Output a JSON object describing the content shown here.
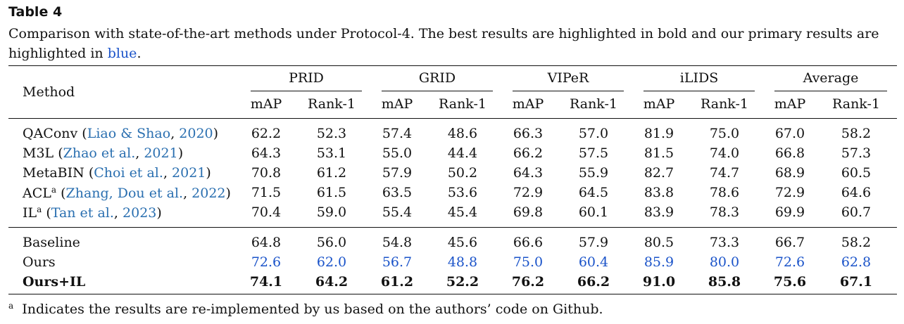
{
  "caption": {
    "title": "Table 4",
    "text_part1": "Comparison with state-of-the-art methods under Protocol-4. The best results are highlighted in bold and our primary results are highlighted in ",
    "blue_word": "blue",
    "text_part2": "."
  },
  "table": {
    "method_header": "Method",
    "groups": [
      "PRID",
      "GRID",
      "VIPeR",
      "iLIDS",
      "Average"
    ],
    "subheaders": [
      "mAP",
      "Rank-1"
    ],
    "rows_sota": [
      {
        "name": "QAConv",
        "cite_open": "(",
        "cite_authors": "Liao & Shao",
        "cite_sep": ", ",
        "cite_year": "2020",
        "cite_close": ")",
        "sup": "",
        "values": [
          "62.2",
          "52.3",
          "57.4",
          "48.6",
          "66.3",
          "57.0",
          "81.9",
          "75.0",
          "67.0",
          "58.2"
        ]
      },
      {
        "name": "M3L",
        "cite_open": "(",
        "cite_authors": "Zhao et al.",
        "cite_sep": ", ",
        "cite_year": "2021",
        "cite_close": ")",
        "sup": "",
        "values": [
          "64.3",
          "53.1",
          "55.0",
          "44.4",
          "66.2",
          "57.5",
          "81.5",
          "74.0",
          "66.8",
          "57.3"
        ]
      },
      {
        "name": "MetaBIN",
        "cite_open": "(",
        "cite_authors": "Choi et al.",
        "cite_sep": ", ",
        "cite_year": "2021",
        "cite_close": ")",
        "sup": "",
        "values": [
          "70.8",
          "61.2",
          "57.9",
          "50.2",
          "64.3",
          "55.9",
          "82.7",
          "74.7",
          "68.9",
          "60.5"
        ]
      },
      {
        "name": "ACL",
        "cite_open": "(",
        "cite_authors": "Zhang, Dou et al.",
        "cite_sep": ", ",
        "cite_year": "2022",
        "cite_close": ")",
        "sup": "a",
        "values": [
          "71.5",
          "61.5",
          "63.5",
          "53.6",
          "72.9",
          "64.5",
          "83.8",
          "78.6",
          "72.9",
          "64.6"
        ]
      },
      {
        "name": "IL",
        "cite_open": "(",
        "cite_authors": "Tan et al.",
        "cite_sep": ", ",
        "cite_year": "2023",
        "cite_close": ")",
        "sup": "a",
        "values": [
          "70.4",
          "59.0",
          "55.4",
          "45.4",
          "69.8",
          "60.1",
          "83.9",
          "78.3",
          "69.9",
          "60.7"
        ]
      }
    ],
    "rows_ours": [
      {
        "name": "Baseline",
        "style": "normal",
        "values": [
          "64.8",
          "56.0",
          "54.8",
          "45.6",
          "66.6",
          "57.9",
          "80.5",
          "73.3",
          "66.7",
          "58.2"
        ]
      },
      {
        "name": "Ours",
        "style": "blue",
        "values": [
          "72.6",
          "62.0",
          "56.7",
          "48.8",
          "75.0",
          "60.4",
          "85.9",
          "80.0",
          "72.6",
          "62.8"
        ]
      },
      {
        "name": "Ours+IL",
        "style": "bold",
        "values": [
          "74.1",
          "64.2",
          "61.2",
          "52.2",
          "76.2",
          "66.2",
          "91.0",
          "85.8",
          "75.6",
          "67.1"
        ]
      }
    ]
  },
  "footnote": {
    "mark": "a",
    "text": "Indicates the results are re-implemented by us based on the authors’ code on Github."
  },
  "colors": {
    "blue_text": "#1a53c9",
    "citation": "#2a6fb0"
  }
}
